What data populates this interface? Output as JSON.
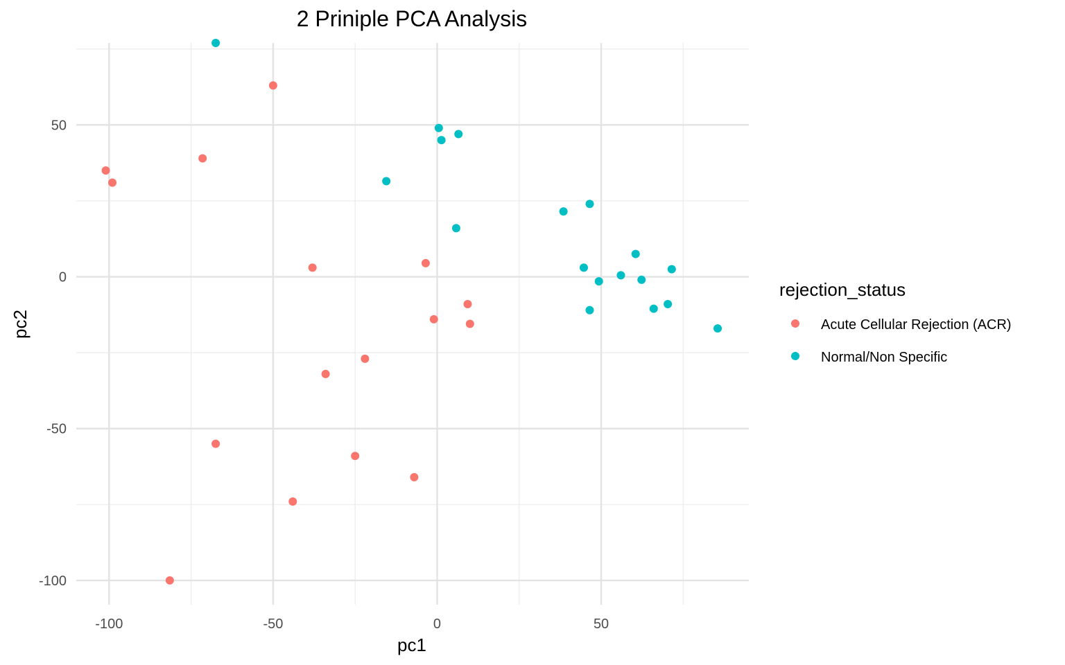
{
  "chart_data": {
    "type": "scatter",
    "title": "2 Priniple PCA Analysis",
    "xlabel": "pc1",
    "ylabel": "pc2",
    "xlim": [
      -110,
      95
    ],
    "ylim": [
      -108,
      77
    ],
    "x_ticks": [
      -100,
      -50,
      0,
      50
    ],
    "y_ticks": [
      -100,
      -50,
      0,
      50
    ],
    "x_tick_labels": [
      "-100",
      "-50",
      "0",
      "50"
    ],
    "y_tick_labels": [
      "-100",
      "-50",
      "0",
      "50"
    ],
    "grid": true,
    "legend": {
      "title": "rejection_status",
      "placement": "right"
    },
    "series": [
      {
        "name": "Acute Cellular Rejection (ACR)",
        "color": "#F8766D",
        "points": [
          {
            "x": -101,
            "y": 35
          },
          {
            "x": -99,
            "y": 31
          },
          {
            "x": -71.5,
            "y": 39
          },
          {
            "x": -50,
            "y": 63
          },
          {
            "x": -38,
            "y": 3
          },
          {
            "x": -3.5,
            "y": 4.5
          },
          {
            "x": -1,
            "y": -14
          },
          {
            "x": 9.3,
            "y": -9
          },
          {
            "x": 10,
            "y": -15.5
          },
          {
            "x": -22,
            "y": -27
          },
          {
            "x": -34,
            "y": -32
          },
          {
            "x": -67.5,
            "y": -55
          },
          {
            "x": -25,
            "y": -59
          },
          {
            "x": -7,
            "y": -66
          },
          {
            "x": -44,
            "y": -74
          },
          {
            "x": -81.5,
            "y": -100
          }
        ]
      },
      {
        "name": "Normal/Non Specific",
        "color": "#00BFC4",
        "points": [
          {
            "x": -67.5,
            "y": 77
          },
          {
            "x": 0.5,
            "y": 49
          },
          {
            "x": 6.5,
            "y": 47
          },
          {
            "x": 1.3,
            "y": 45
          },
          {
            "x": -15.5,
            "y": 31.5
          },
          {
            "x": 38.5,
            "y": 21.5
          },
          {
            "x": 46.5,
            "y": 24
          },
          {
            "x": 5.8,
            "y": 16
          },
          {
            "x": 60.5,
            "y": 7.5
          },
          {
            "x": 44.7,
            "y": 3
          },
          {
            "x": 56,
            "y": 0.5
          },
          {
            "x": 49.3,
            "y": -1.5
          },
          {
            "x": 62.3,
            "y": -1
          },
          {
            "x": 71.5,
            "y": 2.5
          },
          {
            "x": 46.5,
            "y": -11
          },
          {
            "x": 66,
            "y": -10.5
          },
          {
            "x": 70.3,
            "y": -9
          },
          {
            "x": 85.5,
            "y": -17
          }
        ]
      }
    ]
  }
}
